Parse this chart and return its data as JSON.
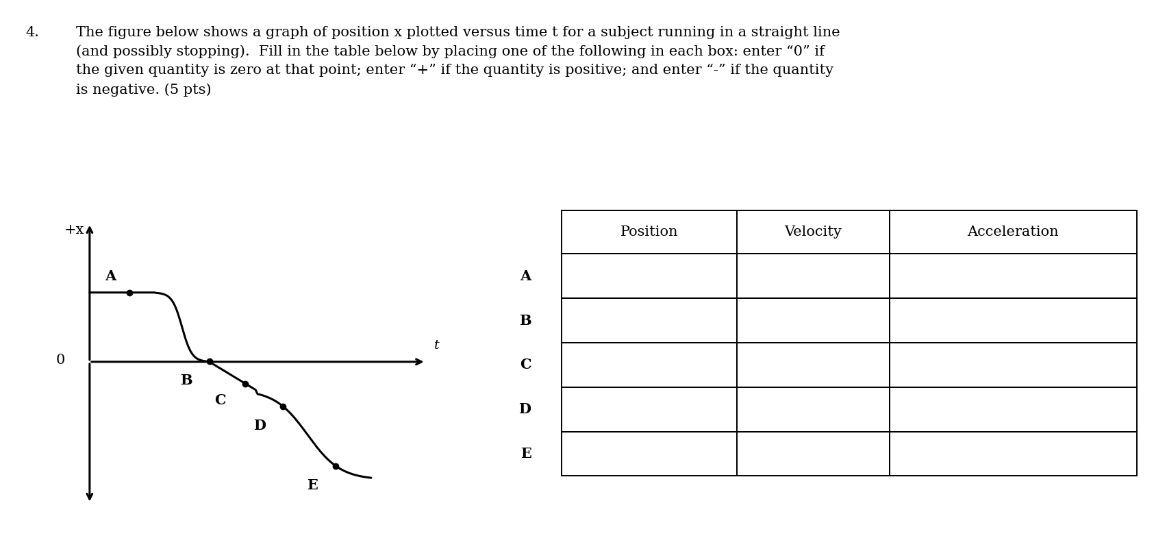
{
  "background_color": "#ffffff",
  "title_num": "4.",
  "title_body": "The figure below shows a graph of position x plotted versus time t for a subject running in a straight line\n(and possibly stopping).  Fill in the table below by placing one of the following in each box: enter “0” if\nthe given quantity is zero at that point; enter “+” if the quantity is positive; and enter “-” if the quantity\nis negative. (5 pts)",
  "graph_ylabel": "+x",
  "graph_xlabel": "t",
  "origin_label": "0",
  "point_labels": [
    "A",
    "B",
    "C",
    "D",
    "E"
  ],
  "table_headers": [
    "Position",
    "Velocity",
    "Acceleration"
  ],
  "table_rows": [
    "A",
    "B",
    "C",
    "D",
    "E"
  ],
  "text_fontsize": 15,
  "label_fontsize": 15,
  "table_header_fontsize": 15,
  "table_row_fontsize": 15
}
